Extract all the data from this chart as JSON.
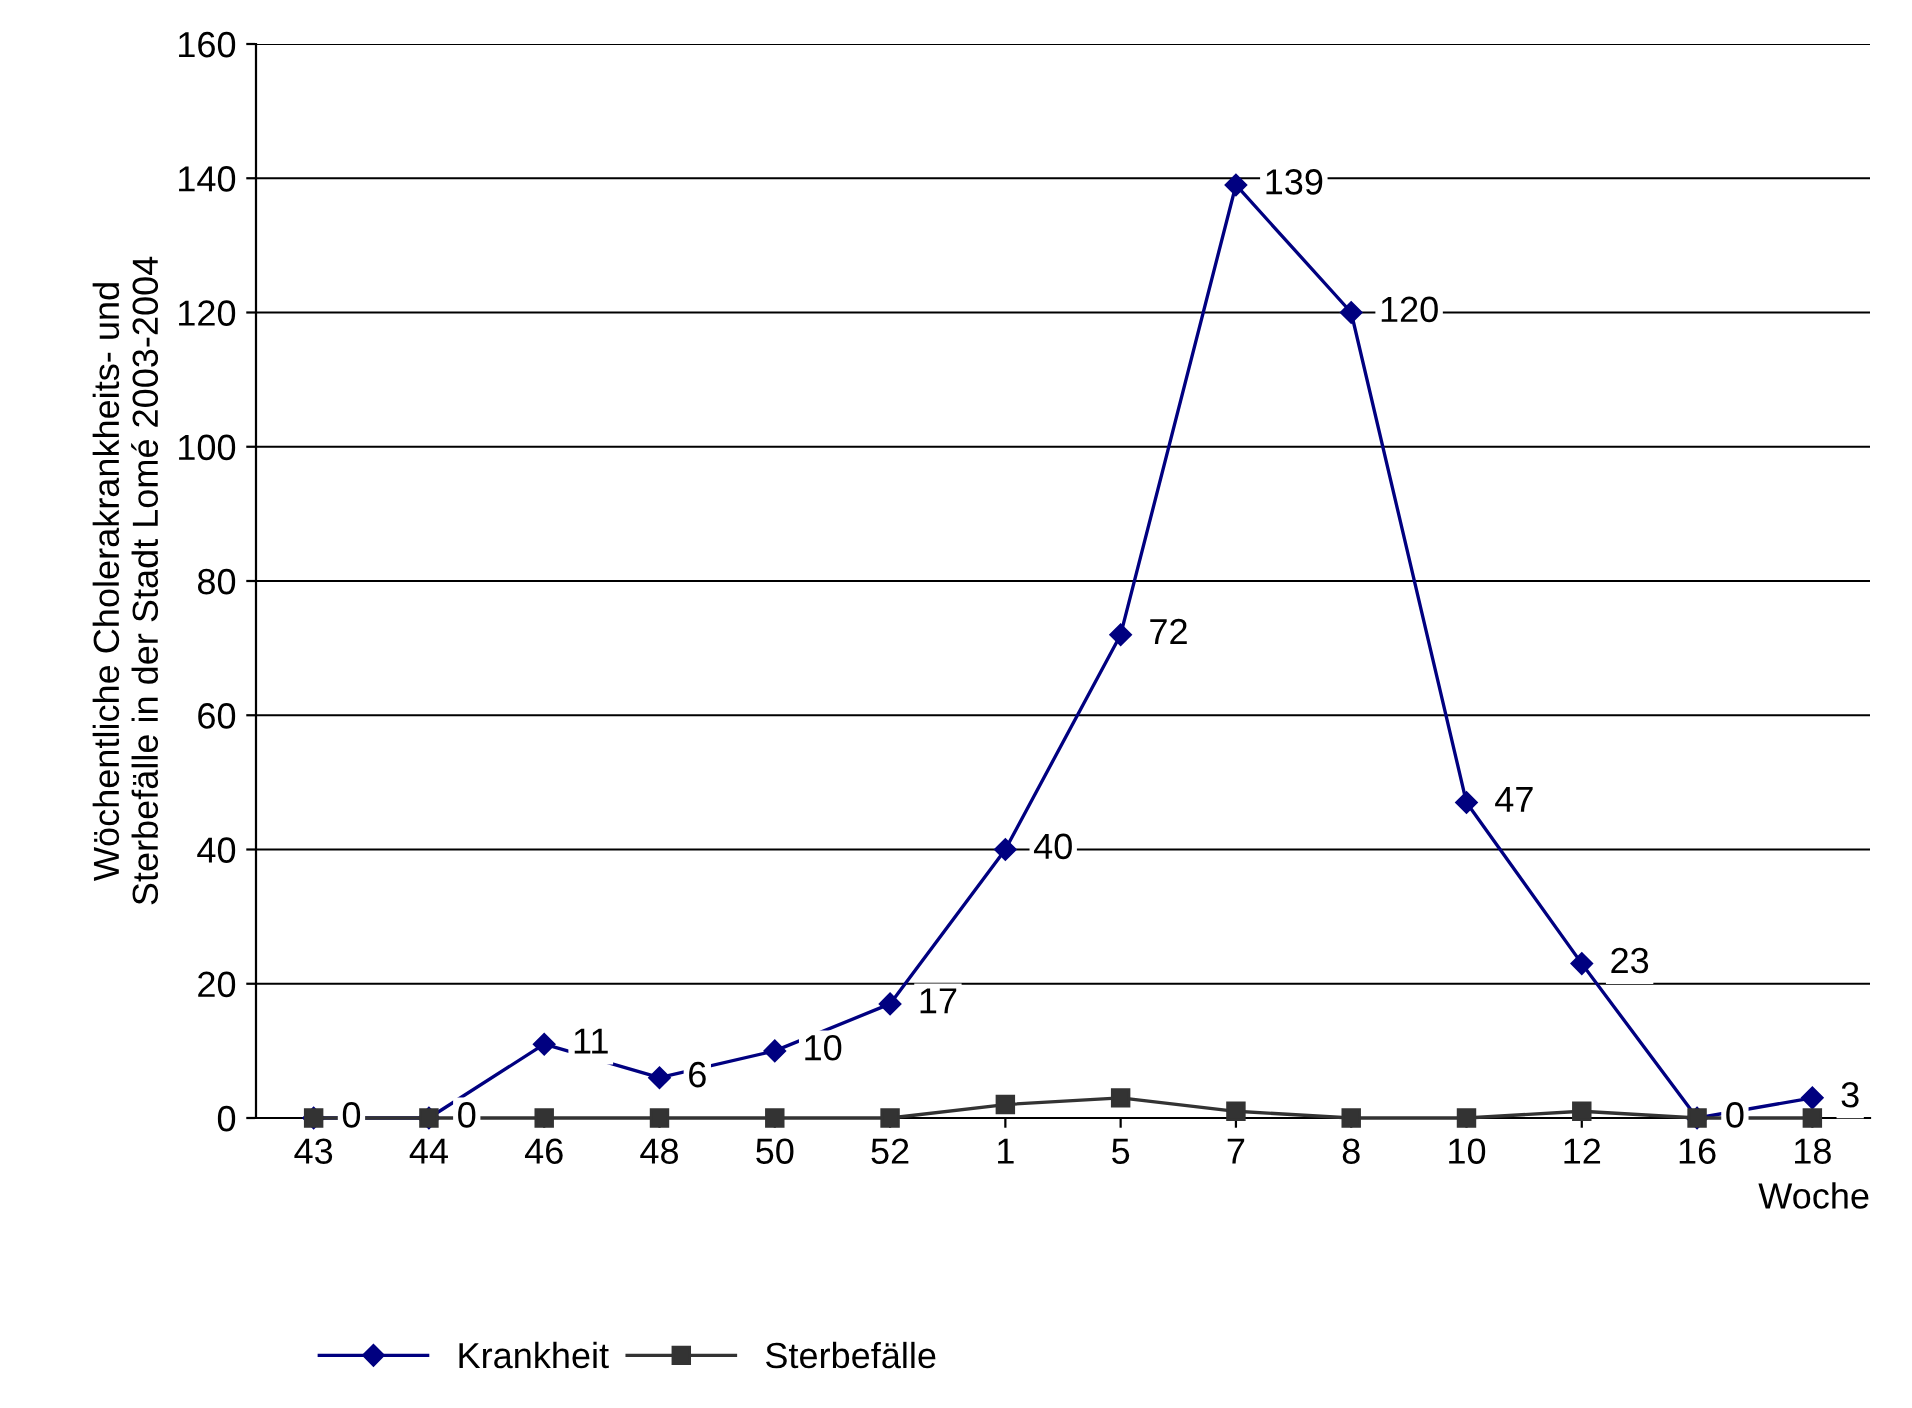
{
  "chart_data": {
    "type": "line",
    "ylabel": "Wöchentliche Cholerakrankheits- und\nSterbefälle in der Stadt Lomé 2003-2004",
    "xlabel": "Woche",
    "categories": [
      "43",
      "44",
      "46",
      "48",
      "50",
      "52",
      "1",
      "5",
      "7",
      "8",
      "10",
      "12",
      "16",
      "18"
    ],
    "series": [
      {
        "name": "Krankheit",
        "color": "#000080",
        "marker": "diamond",
        "values": [
          0,
          0,
          11,
          6,
          10,
          17,
          40,
          72,
          139,
          120,
          47,
          23,
          0,
          3
        ],
        "value_labels": [
          "0",
          "0",
          "11",
          "6",
          "10",
          "17",
          "40",
          "72",
          "139",
          "120",
          "47",
          "23",
          "0",
          "3"
        ]
      },
      {
        "name": "Sterbefälle",
        "color": "#333333",
        "marker": "square",
        "values": [
          0,
          0,
          0,
          0,
          0,
          0,
          2,
          3,
          1,
          0,
          0,
          1,
          0,
          0
        ]
      }
    ],
    "ylim": [
      0,
      160
    ],
    "yticks": [
      0,
      20,
      40,
      60,
      80,
      100,
      120,
      140,
      160
    ],
    "grid": "y",
    "legend": "bottom"
  }
}
